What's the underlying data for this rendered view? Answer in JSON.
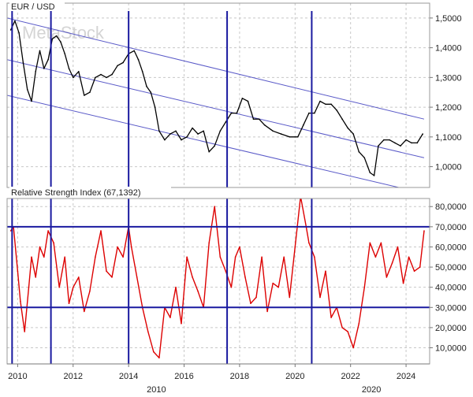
{
  "chart_data": [
    {
      "type": "line",
      "panel": "price",
      "title": "EUR / USD",
      "watermark": "MetaStock",
      "y_ticks": [
        "1,5000",
        "1,4000",
        "1,3000",
        "1,2000",
        "1,1000",
        "1,0000"
      ],
      "y_tick_values": [
        1.5,
        1.4,
        1.3,
        1.2,
        1.1,
        1.0
      ],
      "ylim": [
        0.93,
        1.55
      ],
      "series": [
        {
          "x": [
            2009.75,
            2009.9,
            2010.05,
            2010.2,
            2010.35,
            2010.5,
            2010.65,
            2010.8,
            2010.95,
            2011.1,
            2011.25,
            2011.4,
            2011.55,
            2011.7,
            2011.85,
            2012.0,
            2012.2,
            2012.4,
            2012.6,
            2012.8,
            2013.0,
            2013.2,
            2013.4,
            2013.6,
            2013.8,
            2014.0,
            2014.2,
            2014.35,
            2014.5,
            2014.65,
            2014.8,
            2014.95,
            2015.1,
            2015.3,
            2015.5,
            2015.7,
            2015.9,
            2016.1,
            2016.3,
            2016.5,
            2016.7,
            2016.9,
            2017.1,
            2017.3,
            2017.5,
            2017.7,
            2017.9,
            2018.1,
            2018.3,
            2018.5,
            2018.7,
            2018.9,
            2019.2,
            2019.5,
            2019.8,
            2020.1,
            2020.3,
            2020.5,
            2020.7,
            2020.9,
            2021.1,
            2021.3,
            2021.5,
            2021.7,
            2021.9,
            2022.1,
            2022.3,
            2022.5,
            2022.7,
            2022.85,
            2023.0,
            2023.2,
            2023.4,
            2023.6,
            2023.8,
            2024.0,
            2024.2,
            2024.4,
            2024.6
          ],
          "values": [
            1.46,
            1.49,
            1.45,
            1.35,
            1.26,
            1.22,
            1.32,
            1.39,
            1.33,
            1.36,
            1.43,
            1.44,
            1.42,
            1.38,
            1.33,
            1.3,
            1.32,
            1.24,
            1.25,
            1.3,
            1.31,
            1.3,
            1.31,
            1.34,
            1.35,
            1.38,
            1.39,
            1.36,
            1.32,
            1.27,
            1.25,
            1.2,
            1.12,
            1.09,
            1.11,
            1.12,
            1.09,
            1.1,
            1.13,
            1.11,
            1.12,
            1.05,
            1.07,
            1.12,
            1.15,
            1.18,
            1.18,
            1.23,
            1.22,
            1.16,
            1.16,
            1.14,
            1.12,
            1.11,
            1.1,
            1.1,
            1.14,
            1.18,
            1.18,
            1.22,
            1.21,
            1.21,
            1.19,
            1.16,
            1.13,
            1.11,
            1.05,
            1.03,
            0.98,
            0.97,
            1.07,
            1.09,
            1.09,
            1.08,
            1.07,
            1.09,
            1.08,
            1.08,
            1.11
          ]
        }
      ]
    },
    {
      "type": "line",
      "panel": "indicator",
      "title": "Relative Strength Index (67,1392)",
      "y_ticks": [
        "80,0000",
        "70,0000",
        "60,0000",
        "50,0000",
        "40,0000",
        "30,0000",
        "20,0000",
        "10,0000"
      ],
      "y_tick_values": [
        80,
        70,
        60,
        50,
        40,
        30,
        20,
        10
      ],
      "ylim": [
        2,
        84
      ],
      "reference_lines": [
        70,
        30
      ],
      "series": [
        {
          "x": [
            2009.75,
            2009.85,
            2010.0,
            2010.1,
            2010.25,
            2010.4,
            2010.5,
            2010.65,
            2010.8,
            2010.95,
            2011.1,
            2011.3,
            2011.5,
            2011.7,
            2011.85,
            2012.0,
            2012.2,
            2012.4,
            2012.6,
            2012.8,
            2013.0,
            2013.2,
            2013.4,
            2013.6,
            2013.8,
            2014.0,
            2014.1,
            2014.3,
            2014.5,
            2014.7,
            2014.9,
            2015.1,
            2015.3,
            2015.5,
            2015.7,
            2015.9,
            2016.1,
            2016.3,
            2016.5,
            2016.7,
            2016.9,
            2017.1,
            2017.3,
            2017.5,
            2017.7,
            2017.85,
            2018.0,
            2018.2,
            2018.4,
            2018.6,
            2018.8,
            2019.0,
            2019.2,
            2019.4,
            2019.6,
            2019.8,
            2020.0,
            2020.2,
            2020.4,
            2020.5,
            2020.7,
            2020.9,
            2021.1,
            2021.3,
            2021.5,
            2021.7,
            2021.9,
            2022.1,
            2022.3,
            2022.5,
            2022.7,
            2022.9,
            2023.1,
            2023.3,
            2023.5,
            2023.7,
            2023.9,
            2024.1,
            2024.3,
            2024.5,
            2024.65
          ],
          "values": [
            68,
            70,
            48,
            33,
            18,
            40,
            55,
            45,
            60,
            55,
            68,
            62,
            40,
            55,
            32,
            40,
            45,
            28,
            38,
            55,
            68,
            48,
            45,
            60,
            55,
            70,
            60,
            45,
            30,
            18,
            8,
            5,
            30,
            25,
            40,
            22,
            55,
            45,
            38,
            30,
            62,
            80,
            55,
            48,
            40,
            55,
            60,
            45,
            32,
            35,
            55,
            28,
            42,
            40,
            55,
            35,
            60,
            85,
            70,
            62,
            55,
            35,
            48,
            25,
            30,
            20,
            18,
            10,
            22,
            40,
            62,
            55,
            62,
            45,
            52,
            60,
            42,
            55,
            48,
            50,
            68
          ]
        }
      ]
    }
  ],
  "x_axis": {
    "tick_labels": [
      "2010",
      "2012",
      "2014",
      "2016",
      "2018",
      "2020",
      "2022",
      "2024"
    ],
    "tick_values": [
      2010,
      2012,
      2014,
      2016,
      2018,
      2020,
      2022,
      2024
    ],
    "secondary_labels": [
      "2010",
      "2020"
    ],
    "secondary_values": [
      2015,
      2022.75
    ],
    "xlim": [
      2009.62,
      2024.85
    ]
  },
  "vertical_lines": [
    2009.8,
    2011.2,
    2014.0,
    2017.55,
    2020.6
  ],
  "channel_lines": [
    {
      "x": [
        2009.62,
        2024.65
      ],
      "y": [
        1.36,
        1.03
      ]
    },
    {
      "x": [
        2009.62,
        2024.65
      ],
      "y": [
        1.24,
        0.91
      ]
    },
    {
      "x": [
        2009.62,
        2024.65
      ],
      "y": [
        1.5,
        1.16
      ]
    }
  ],
  "colors": {
    "price": "#000000",
    "rsi": "#dd0000",
    "markers": "#1a1aa0",
    "channel": "#5a5ac8",
    "grid": "#c8c8c8"
  }
}
